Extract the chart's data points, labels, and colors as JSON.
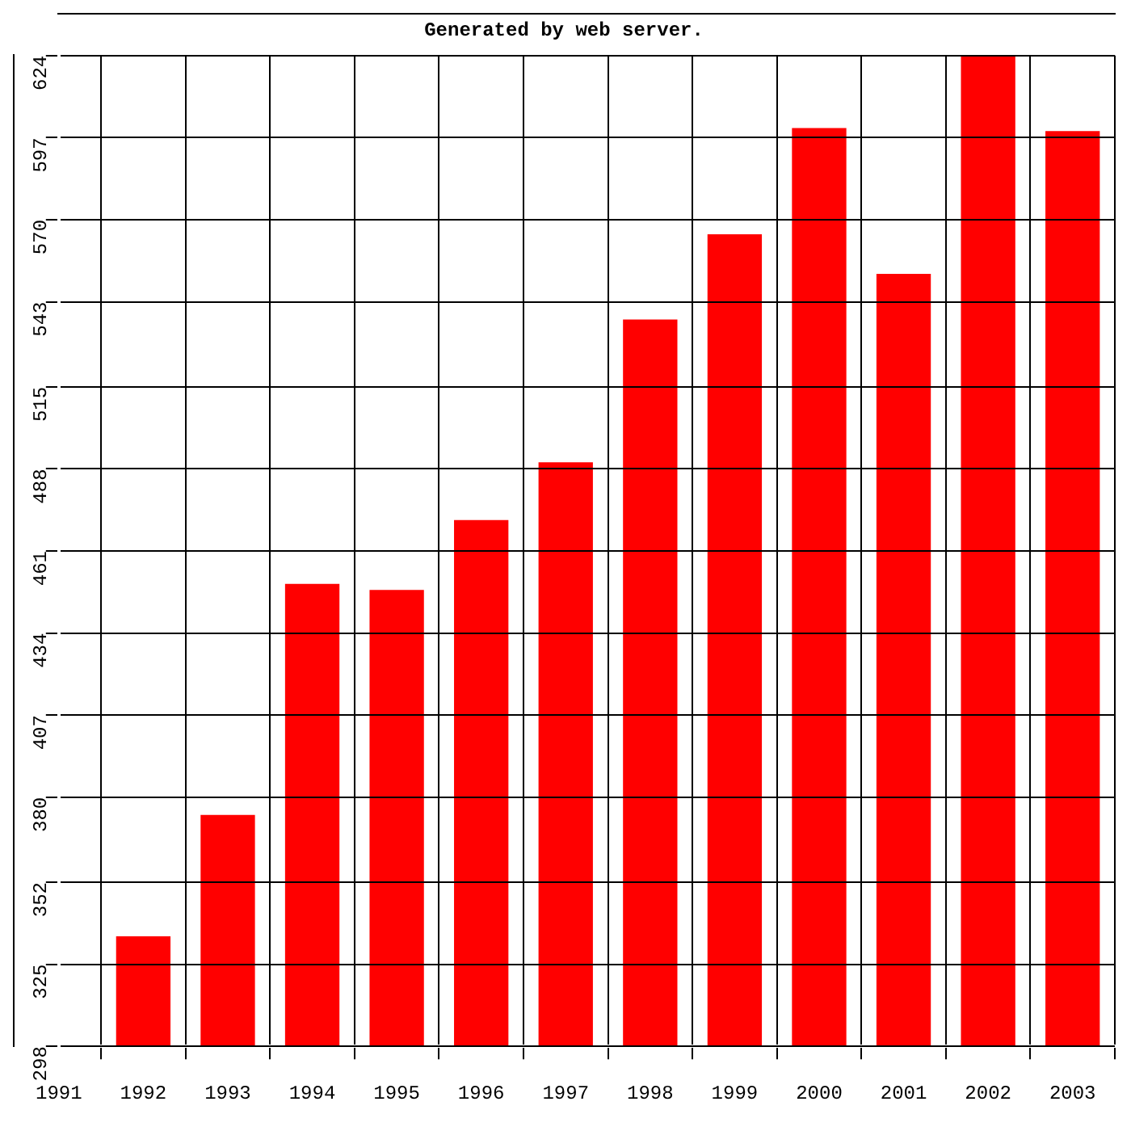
{
  "chart_data": {
    "type": "bar",
    "title": "Generated by web server.",
    "x": [
      1992,
      1993,
      1994,
      1995,
      1996,
      1997,
      1998,
      1999,
      2000,
      2001,
      2002,
      2003
    ],
    "values": [
      334,
      374,
      450,
      448,
      471,
      490,
      537,
      565,
      600,
      552,
      624,
      599
    ],
    "color": "#ff0000",
    "xlim": [
      1991,
      2003.5
    ],
    "xticks": [
      1991,
      1992,
      1993,
      1994,
      1995,
      1996,
      1997,
      1998,
      1999,
      2000,
      2001,
      2002,
      2003
    ],
    "ylim": [
      298,
      624
    ],
    "yticks": [
      298,
      325,
      352,
      380,
      407,
      434,
      461,
      488,
      515,
      543,
      570,
      597,
      624
    ],
    "grid": true,
    "legend": false
  }
}
